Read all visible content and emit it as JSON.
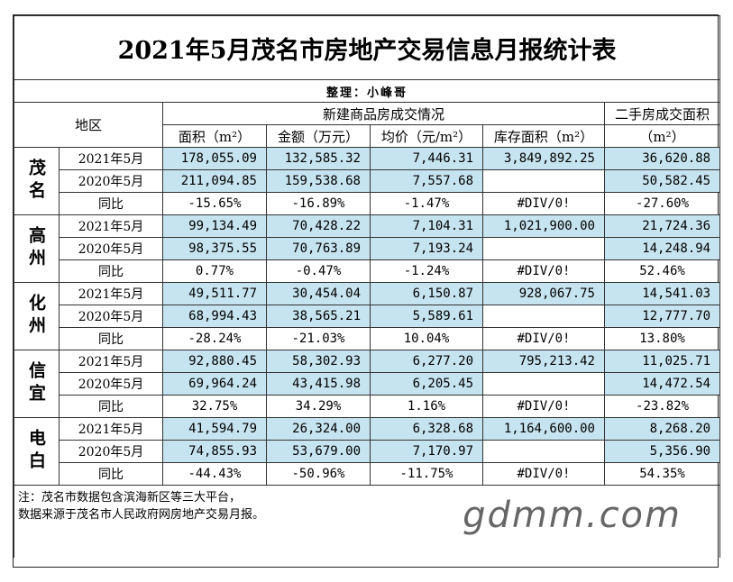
{
  "title": "2021年5月茂名市房地产交易信息月报统计表",
  "compiler": "整理：小峰哥",
  "headers": {
    "region": "地区",
    "new_group": "新建商品房成交情况",
    "second_group": "二手房成交面积",
    "area": "面积（m²）",
    "amount": "金额（万元）",
    "avg_price": "均价（元/m²）",
    "inventory": "库存面积（m²）",
    "second_unit": "（m²）"
  },
  "regions": [
    {
      "name": "茂名",
      "rows": [
        {
          "label": "2021年5月",
          "area": "178,055.09",
          "amount": "132,585.32",
          "avg": "7,446.31",
          "inv": "3,849,892.25",
          "second": "36,620.88"
        },
        {
          "label": "2020年5月",
          "area": "211,094.85",
          "amount": "159,538.68",
          "avg": "7,557.68",
          "inv": "",
          "second": "50,582.45"
        },
        {
          "label": "同比",
          "area": "-15.65%",
          "amount": "-16.89%",
          "avg": "-1.47%",
          "inv": "#DIV/0!",
          "second": "-27.60%"
        }
      ]
    },
    {
      "name": "高州",
      "rows": [
        {
          "label": "2021年5月",
          "area": "99,134.49",
          "amount": "70,428.22",
          "avg": "7,104.31",
          "inv": "1,021,900.00",
          "second": "21,724.36"
        },
        {
          "label": "2020年5月",
          "area": "98,375.55",
          "amount": "70,763.89",
          "avg": "7,193.24",
          "inv": "",
          "second": "14,248.94"
        },
        {
          "label": "同比",
          "area": "0.77%",
          "amount": "-0.47%",
          "avg": "-1.24%",
          "inv": "#DIV/0!",
          "second": "52.46%"
        }
      ]
    },
    {
      "name": "化州",
      "rows": [
        {
          "label": "2021年5月",
          "area": "49,511.77",
          "amount": "30,454.04",
          "avg": "6,150.87",
          "inv": "928,067.75",
          "second": "14,541.03"
        },
        {
          "label": "2020年5月",
          "area": "68,994.43",
          "amount": "38,565.21",
          "avg": "5,589.61",
          "inv": "",
          "second": "12,777.70"
        },
        {
          "label": "同比",
          "area": "-28.24%",
          "amount": "-21.03%",
          "avg": "10.04%",
          "inv": "#DIV/0!",
          "second": "13.80%"
        }
      ]
    },
    {
      "name": "信宜",
      "rows": [
        {
          "label": "2021年5月",
          "area": "92,880.45",
          "amount": "58,302.93",
          "avg": "6,277.20",
          "inv": "795,213.42",
          "second": "11,025.71"
        },
        {
          "label": "2020年5月",
          "area": "69,964.24",
          "amount": "43,415.98",
          "avg": "6,205.45",
          "inv": "",
          "second": "14,472.54"
        },
        {
          "label": "同比",
          "area": "32.75%",
          "amount": "34.29%",
          "avg": "1.16%",
          "inv": "#DIV/0!",
          "second": "-23.82%"
        }
      ]
    },
    {
      "name": "电白",
      "rows": [
        {
          "label": "2021年5月",
          "area": "41,594.79",
          "amount": "26,324.00",
          "avg": "6,328.68",
          "inv": "1,164,600.00",
          "second": "8,268.20"
        },
        {
          "label": "2020年5月",
          "area": "74,855.93",
          "amount": "53,679.00",
          "avg": "7,170.97",
          "inv": "",
          "second": "5,356.90"
        },
        {
          "label": "同比",
          "area": "-44.43%",
          "amount": "-50.96%",
          "avg": "-11.75%",
          "inv": "#DIV/0!",
          "second": "54.35%"
        }
      ]
    }
  ],
  "notes": [
    "注：茂名市数据包含滨海新区等三大平台，",
    "数据来源于茂名市人民政府网房地产交易月报。"
  ],
  "watermark": "gdmm.com",
  "colors": {
    "highlight": "#c6e4ef",
    "border": "#333333"
  }
}
